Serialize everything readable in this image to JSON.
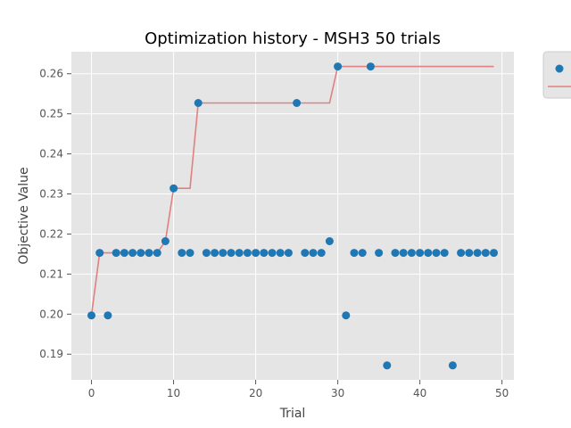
{
  "chart_data": {
    "type": "scatter",
    "title": "Optimization history - MSH3 50 trials",
    "xlabel": "Trial",
    "ylabel": "Objective Value",
    "xlim": [
      -2.45,
      51.45
    ],
    "ylim": [
      0.1836,
      0.2655
    ],
    "xticks": [
      0,
      10,
      20,
      30,
      40,
      50
    ],
    "yticks": [
      0.19,
      0.2,
      0.21,
      0.22,
      0.23,
      0.24,
      0.25,
      0.26
    ],
    "ytick_labels": [
      "0.19",
      "0.20",
      "0.21",
      "0.22",
      "0.23",
      "0.24",
      "0.25",
      "0.26"
    ],
    "grid": true,
    "legend": "outside top-right (clipped)",
    "colors": {
      "points": "#1f77b4",
      "best_line": "#e08080",
      "plot_background": "#e5e5e5",
      "grid": "#ffffff"
    },
    "series": [
      {
        "kind": "scatter",
        "x": [
          0,
          1,
          2,
          3,
          4,
          5,
          6,
          7,
          8,
          9,
          10,
          11,
          12,
          13,
          14,
          15,
          16,
          17,
          18,
          19,
          20,
          21,
          22,
          23,
          24,
          25,
          26,
          27,
          28,
          29,
          30,
          31,
          32,
          33,
          34,
          35,
          36,
          37,
          38,
          39,
          40,
          41,
          42,
          43,
          44,
          45,
          46,
          47,
          48,
          49
        ],
        "values": [
          0.1997,
          0.2153,
          0.1997,
          0.2153,
          0.2153,
          0.2153,
          0.2153,
          0.2153,
          0.2153,
          0.2182,
          0.2314,
          0.2153,
          0.2153,
          0.2527,
          0.2153,
          0.2153,
          0.2153,
          0.2153,
          0.2153,
          0.2153,
          0.2153,
          0.2153,
          0.2153,
          0.2153,
          0.2153,
          0.2527,
          0.2153,
          0.2153,
          0.2153,
          0.2182,
          0.2618,
          0.1997,
          0.2153,
          0.2153,
          0.2618,
          0.2153,
          0.1872,
          0.2153,
          0.2153,
          0.2153,
          0.2153,
          0.2153,
          0.2153,
          0.2153,
          0.1872,
          0.2153,
          0.2153,
          0.2153,
          0.2153,
          0.2153
        ]
      },
      {
        "kind": "line",
        "x": [
          0,
          1,
          2,
          3,
          4,
          5,
          6,
          7,
          8,
          9,
          10,
          11,
          12,
          13,
          14,
          15,
          16,
          17,
          18,
          19,
          20,
          21,
          22,
          23,
          24,
          25,
          26,
          27,
          28,
          29,
          30,
          31,
          32,
          33,
          34,
          35,
          36,
          37,
          38,
          39,
          40,
          41,
          42,
          43,
          44,
          45,
          46,
          47,
          48,
          49
        ],
        "values": [
          0.1997,
          0.2153,
          0.2153,
          0.2153,
          0.2153,
          0.2153,
          0.2153,
          0.2153,
          0.2153,
          0.2182,
          0.2314,
          0.2314,
          0.2314,
          0.2527,
          0.2527,
          0.2527,
          0.2527,
          0.2527,
          0.2527,
          0.2527,
          0.2527,
          0.2527,
          0.2527,
          0.2527,
          0.2527,
          0.2527,
          0.2527,
          0.2527,
          0.2527,
          0.2527,
          0.2618,
          0.2618,
          0.2618,
          0.2618,
          0.2618,
          0.2618,
          0.2618,
          0.2618,
          0.2618,
          0.2618,
          0.2618,
          0.2618,
          0.2618,
          0.2618,
          0.2618,
          0.2618,
          0.2618,
          0.2618,
          0.2618,
          0.2618
        ]
      }
    ]
  }
}
